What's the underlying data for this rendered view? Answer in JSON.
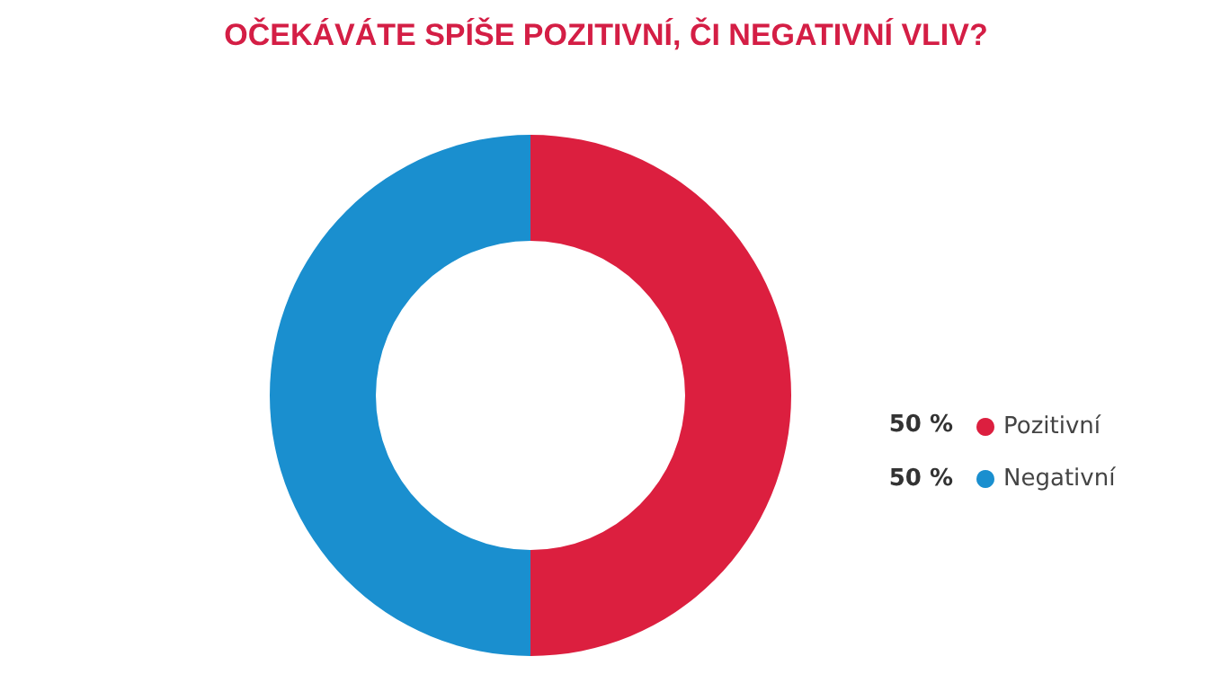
{
  "chart_data": {
    "type": "donut",
    "title": "OČEKÁVÁTE SPÍŠE POZITIVNÍ, ČI NEGATIVNÍ VLIV?",
    "categories": [
      "Pozitivní",
      "Negativní"
    ],
    "values": [
      50,
      50
    ],
    "colors": [
      "#dc1f3f",
      "#1a8fcf"
    ],
    "value_labels": [
      "50 %",
      "50 %"
    ],
    "legend": "right"
  }
}
